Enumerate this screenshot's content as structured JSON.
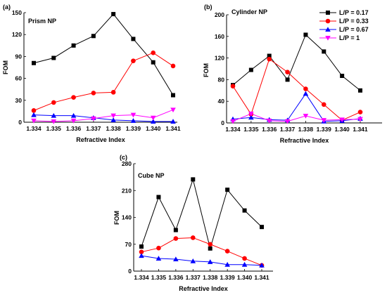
{
  "chart_data": [
    {
      "type": "line",
      "panel": "(a)",
      "title": "Prism NP",
      "xlabel": "Refractive Index",
      "ylabel": "FOM",
      "categories": [
        "1.334",
        "1.335",
        "1.336",
        "1.337",
        "1.338",
        "1.339",
        "1.340",
        "1.341"
      ],
      "ylim": [
        0,
        150
      ],
      "yticks": [
        0,
        30,
        60,
        90,
        120,
        150
      ],
      "series": [
        {
          "name": "L/P =  0.17",
          "color": "#000000",
          "marker": "square",
          "values": [
            81,
            88,
            105,
            118,
            148,
            114,
            82,
            37
          ]
        },
        {
          "name": "L/P = 0.33",
          "color": "#ff0000",
          "marker": "circle",
          "values": [
            16,
            27,
            34,
            40,
            41,
            84,
            95,
            77
          ]
        },
        {
          "name": "L/P = 0.67",
          "color": "#0000ff",
          "marker": "triangle-up",
          "values": [
            10,
            9,
            9,
            6,
            3,
            2,
            1,
            1
          ]
        },
        {
          "name": "L/P = 1",
          "color": "#ff00ff",
          "marker": "triangle-down",
          "values": [
            2,
            1,
            2,
            5,
            9,
            10,
            6,
            17
          ]
        }
      ]
    },
    {
      "type": "line",
      "panel": "(b)",
      "title": "Cylinder NP",
      "xlabel": "Refractive Index",
      "ylabel": "FOM",
      "categories": [
        "1.334",
        "1.335",
        "1.336",
        "1.337",
        "1.338",
        "1.339",
        "1.340",
        "1.341"
      ],
      "ylim": [
        0,
        200
      ],
      "yticks": [
        0,
        40,
        80,
        120,
        160,
        200
      ],
      "legend": {
        "placement": "top-right",
        "entries": [
          "L/P =  0.17",
          "L/P = 0.33",
          "L/P = 0.67",
          "L/P = 1"
        ]
      },
      "series": [
        {
          "name": "L/P =  0.17",
          "color": "#000000",
          "marker": "square",
          "values": [
            70,
            98,
            124,
            80,
            163,
            132,
            87,
            60
          ]
        },
        {
          "name": "L/P = 0.33",
          "color": "#ff0000",
          "marker": "circle",
          "values": [
            68,
            16,
            118,
            94,
            63,
            34,
            5,
            20
          ]
        },
        {
          "name": "L/P = 0.67",
          "color": "#0000ff",
          "marker": "triangle-up",
          "values": [
            7,
            10,
            6,
            5,
            54,
            3,
            4,
            8
          ]
        },
        {
          "name": "L/P = 1",
          "color": "#ff00ff",
          "marker": "triangle-down",
          "values": [
            3,
            17,
            4,
            3,
            13,
            5,
            6,
            7
          ]
        }
      ]
    },
    {
      "type": "line",
      "panel": "(c)",
      "title": "Cube NP",
      "xlabel": "Refractive Index",
      "ylabel": "FOM",
      "categories": [
        "1.334",
        "1.335",
        "1.336",
        "1.337",
        "1.338",
        "1.339",
        "1.340",
        "1.341"
      ],
      "ylim": [
        0,
        280
      ],
      "yticks": [
        0,
        70,
        140,
        210,
        280
      ],
      "series": [
        {
          "name": "L/P =  0.17",
          "color": "#000000",
          "marker": "square",
          "values": [
            64,
            193,
            107,
            239,
            59,
            212,
            158,
            115
          ]
        },
        {
          "name": "L/P = 0.33",
          "color": "#ff0000",
          "marker": "circle",
          "values": [
            50,
            60,
            85,
            87,
            70,
            52,
            33,
            15
          ]
        },
        {
          "name": "L/P = 0.67",
          "color": "#0000ff",
          "marker": "triangle-up",
          "values": [
            40,
            33,
            31,
            26,
            24,
            17,
            17,
            15
          ]
        }
      ]
    }
  ]
}
